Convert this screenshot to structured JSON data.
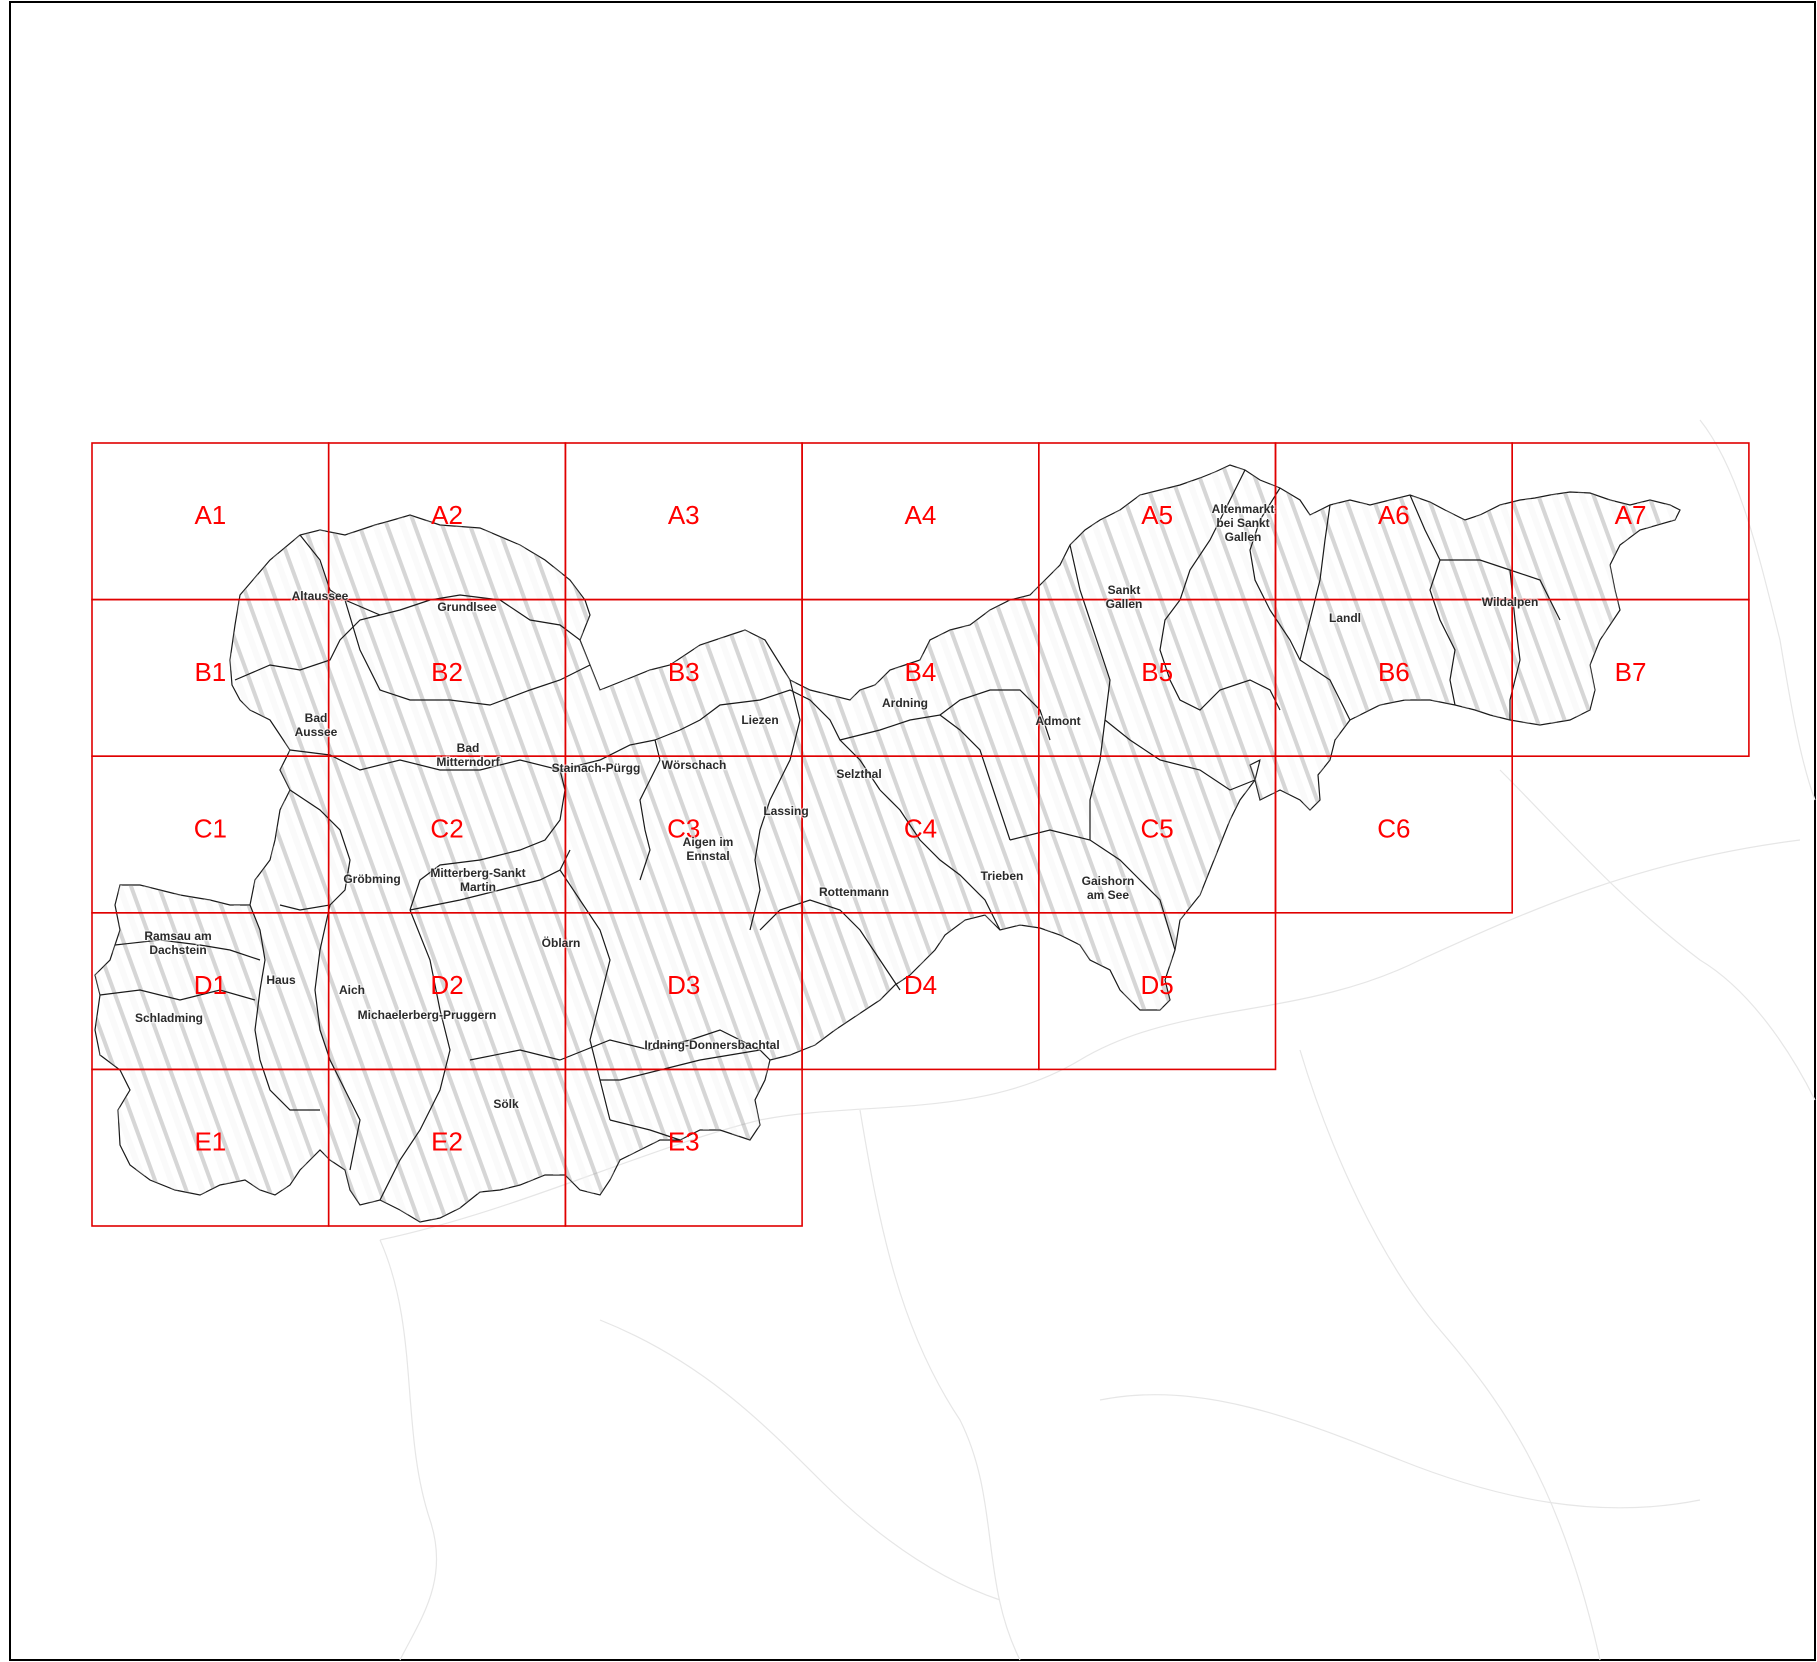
{
  "map": {
    "grid_color": "#ff0000",
    "label_color": "#2a2a2a",
    "grid_cells": [
      "A1",
      "A2",
      "A3",
      "A4",
      "A5",
      "A6",
      "A7",
      "B1",
      "B2",
      "B3",
      "B4",
      "B5",
      "B6",
      "B7",
      "C1",
      "C2",
      "C3",
      "C4",
      "C5",
      "C6",
      "D1",
      "D2",
      "D3",
      "D4",
      "D5",
      "E1",
      "E2",
      "E3"
    ],
    "municipalities": [
      "Altaussee",
      "Grundlsee",
      "Bad Aussee",
      "Bad Mitterndorf",
      "Stainach-Pürgg",
      "Wörschach",
      "Liezen",
      "Ardning",
      "Admont",
      "Selzthal",
      "Lassing",
      "Aigen im Ennstal",
      "Rottenmann",
      "Trieben",
      "Gaishorn am See",
      "Sankt Gallen",
      "Altenmarkt bei Sankt Gallen",
      "Landl",
      "Wildalpen",
      "Gröbming",
      "Mitterberg-Sankt Martin",
      "Ramsau am Dachstein",
      "Haus",
      "Aich",
      "Schladming",
      "Michaelerberg-Pruggern",
      "Öblarn",
      "Irdning-Donnersbachtal",
      "Sölk"
    ]
  }
}
